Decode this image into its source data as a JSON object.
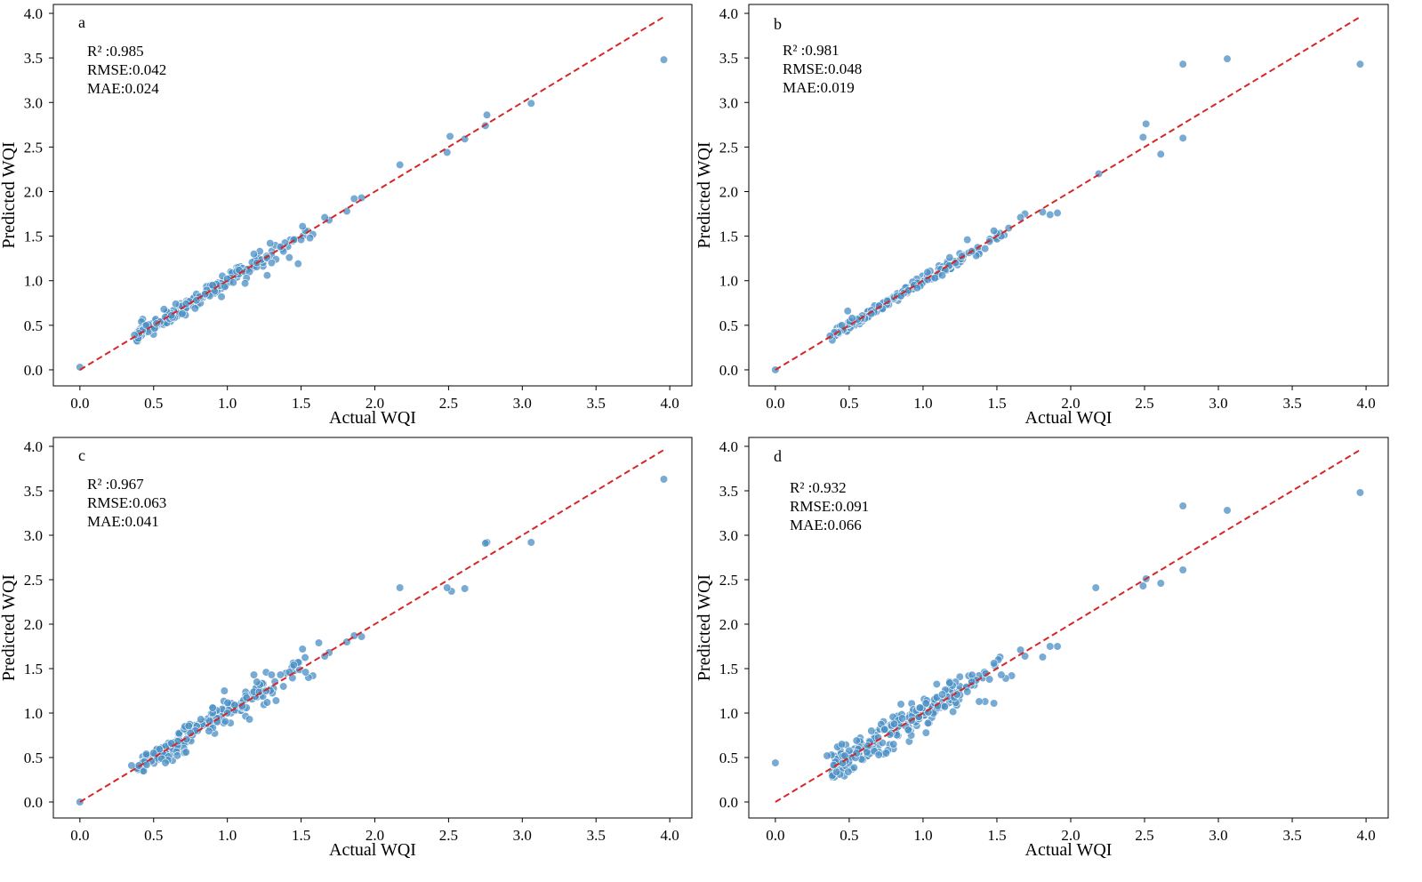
{
  "figure": {
    "background": "#ffffff"
  },
  "style": {
    "point_color": "#4a8fc4",
    "point_edge": "#ffffff",
    "line_color": "#d62728"
  },
  "chart_data": [
    {
      "type": "scatter",
      "panel_label": "a",
      "xlabel": "Actual WQI",
      "ylabel": "Predicted WQI",
      "xlim": [
        -0.18,
        4.15
      ],
      "ylim": [
        -0.18,
        4.1
      ],
      "xticks": [
        "0.0",
        "0.5",
        "1.0",
        "1.5",
        "2.0",
        "2.5",
        "3.0",
        "3.5",
        "4.0"
      ],
      "yticks": [
        "0.0",
        "0.5",
        "1.0",
        "1.5",
        "2.0",
        "2.5",
        "3.0",
        "3.5",
        "4.0"
      ],
      "metrics": [
        "R² :0.985",
        "RMSE:0.042",
        "MAE:0.024"
      ],
      "reference_line": {
        "x": [
          0,
          3.96
        ],
        "y": [
          0,
          3.96
        ]
      },
      "noise": 0.04,
      "seed": 11,
      "points": [
        [
          0.0,
          0.03
        ],
        [
          3.96,
          3.48
        ],
        [
          3.06,
          2.99
        ],
        [
          2.76,
          2.86
        ],
        [
          2.75,
          2.74
        ],
        [
          2.61,
          2.59
        ],
        [
          2.51,
          2.62
        ],
        [
          2.49,
          2.44
        ],
        [
          2.17,
          2.3
        ],
        [
          1.91,
          1.93
        ],
        [
          1.86,
          1.92
        ],
        [
          1.81,
          1.78
        ],
        [
          1.69,
          1.68
        ],
        [
          1.66,
          1.71
        ],
        [
          1.58,
          1.52
        ],
        [
          1.56,
          1.48
        ],
        [
          1.53,
          1.56
        ],
        [
          1.51,
          1.61
        ],
        [
          1.5,
          1.46
        ],
        [
          1.48,
          1.19
        ],
        [
          1.45,
          1.46
        ],
        [
          1.42,
          1.26
        ],
        [
          1.38,
          1.33
        ],
        [
          1.36,
          1.38
        ],
        [
          1.33,
          1.24
        ],
        [
          1.3,
          1.2
        ],
        [
          1.29,
          1.42
        ],
        [
          1.27,
          1.06
        ],
        [
          1.22,
          1.33
        ],
        [
          1.2,
          1.2
        ],
        [
          1.18,
          1.3
        ],
        [
          1.15,
          1.1
        ],
        [
          1.13,
          1.03
        ],
        [
          1.12,
          0.97
        ],
        [
          1.08,
          1.12
        ],
        [
          0.96,
          0.82
        ],
        [
          0.9,
          0.95
        ],
        [
          0.85,
          0.85
        ],
        [
          0.65,
          0.74
        ],
        [
          0.57,
          0.68
        ],
        [
          0.52,
          0.52
        ],
        [
          0.45,
          0.5
        ],
        [
          0.4,
          0.41
        ],
        [
          0.37,
          0.39
        ],
        [
          0.62,
          0.61
        ],
        [
          0.72,
          0.74
        ],
        [
          0.79,
          0.78
        ],
        [
          1.0,
          1.02
        ],
        [
          1.04,
          0.98
        ]
      ],
      "clusters": [
        {
          "from": 0.38,
          "to": 1.25,
          "count": 170
        },
        {
          "from": 1.25,
          "to": 1.55,
          "count": 15
        }
      ]
    },
    {
      "type": "scatter",
      "panel_label": "b",
      "xlabel": "Actual WQI",
      "ylabel": "Predicted WQI",
      "xlim": [
        -0.18,
        4.15
      ],
      "ylim": [
        -0.18,
        4.1
      ],
      "xticks": [
        "0.0",
        "0.5",
        "1.0",
        "1.5",
        "2.0",
        "2.5",
        "3.0",
        "3.5",
        "4.0"
      ],
      "yticks": [
        "0.0",
        "0.5",
        "1.0",
        "1.5",
        "2.0",
        "2.5",
        "3.0",
        "3.5",
        "4.0"
      ],
      "metrics": [
        "R² :0.981",
        "RMSE:0.048",
        "MAE:0.019"
      ],
      "reference_line": {
        "x": [
          0,
          3.96
        ],
        "y": [
          0,
          3.96
        ]
      },
      "noise": 0.025,
      "seed": 23,
      "points": [
        [
          0.0,
          0.0
        ],
        [
          3.96,
          3.43
        ],
        [
          3.06,
          3.49
        ],
        [
          2.76,
          3.43
        ],
        [
          2.76,
          2.6
        ],
        [
          2.61,
          2.42
        ],
        [
          2.51,
          2.76
        ],
        [
          2.49,
          2.61
        ],
        [
          2.19,
          2.2
        ],
        [
          1.91,
          1.76
        ],
        [
          1.86,
          1.74
        ],
        [
          1.81,
          1.77
        ],
        [
          1.69,
          1.75
        ],
        [
          1.66,
          1.71
        ],
        [
          1.58,
          1.59
        ],
        [
          1.53,
          1.5
        ],
        [
          1.5,
          1.53
        ],
        [
          1.48,
          1.56
        ],
        [
          1.45,
          1.44
        ],
        [
          1.42,
          1.36
        ],
        [
          1.38,
          1.3
        ],
        [
          1.36,
          1.28
        ],
        [
          1.33,
          1.33
        ],
        [
          1.3,
          1.46
        ],
        [
          1.22,
          1.2
        ],
        [
          1.18,
          1.26
        ],
        [
          1.15,
          1.12
        ],
        [
          1.13,
          1.06
        ],
        [
          1.08,
          1.03
        ],
        [
          0.96,
          0.92
        ],
        [
          0.9,
          0.89
        ],
        [
          0.85,
          0.83
        ],
        [
          0.65,
          0.63
        ],
        [
          0.52,
          0.58
        ],
        [
          0.49,
          0.66
        ],
        [
          0.45,
          0.5
        ],
        [
          0.4,
          0.42
        ],
        [
          0.37,
          0.38
        ]
      ],
      "clusters": [
        {
          "from": 0.38,
          "to": 1.25,
          "count": 170
        },
        {
          "from": 1.25,
          "to": 1.55,
          "count": 15
        }
      ]
    },
    {
      "type": "scatter",
      "panel_label": "c",
      "xlabel": "Actual WQI",
      "ylabel": "Predicted WQI",
      "xlim": [
        -0.18,
        4.15
      ],
      "ylim": [
        -0.18,
        4.1
      ],
      "xticks": [
        "0.0",
        "0.5",
        "1.0",
        "1.5",
        "2.0",
        "2.5",
        "3.0",
        "3.5",
        "4.0"
      ],
      "yticks": [
        "0.0",
        "0.5",
        "1.0",
        "1.5",
        "2.0",
        "2.5",
        "3.0",
        "3.5",
        "4.0"
      ],
      "metrics": [
        "R² :0.967",
        "RMSE:0.063",
        "MAE:0.041"
      ],
      "reference_line": {
        "x": [
          0,
          3.96
        ],
        "y": [
          0,
          3.96
        ]
      },
      "noise": 0.065,
      "seed": 37,
      "points": [
        [
          0.0,
          0.0
        ],
        [
          3.96,
          3.63
        ],
        [
          3.06,
          2.92
        ],
        [
          2.76,
          2.92
        ],
        [
          2.75,
          2.91
        ],
        [
          2.61,
          2.4
        ],
        [
          2.52,
          2.37
        ],
        [
          2.49,
          2.41
        ],
        [
          2.17,
          2.41
        ],
        [
          1.91,
          1.86
        ],
        [
          1.86,
          1.87
        ],
        [
          1.81,
          1.8
        ],
        [
          1.69,
          1.68
        ],
        [
          1.66,
          1.64
        ],
        [
          1.62,
          1.79
        ],
        [
          1.58,
          1.42
        ],
        [
          1.55,
          1.4
        ],
        [
          1.53,
          1.46
        ],
        [
          1.51,
          1.72
        ],
        [
          1.48,
          1.57
        ],
        [
          1.45,
          1.54
        ],
        [
          1.42,
          1.46
        ],
        [
          1.38,
          1.3
        ],
        [
          1.36,
          1.43
        ],
        [
          1.33,
          1.14
        ],
        [
          1.3,
          1.43
        ],
        [
          1.27,
          1.12
        ],
        [
          1.22,
          1.32
        ],
        [
          1.2,
          1.35
        ],
        [
          1.18,
          1.43
        ],
        [
          1.15,
          0.93
        ],
        [
          1.13,
          1.06
        ],
        [
          1.05,
          1.09
        ],
        [
          0.98,
          1.25
        ],
        [
          0.9,
          1.06
        ],
        [
          0.82,
          0.93
        ],
        [
          0.72,
          0.56
        ],
        [
          0.58,
          0.44
        ],
        [
          0.45,
          0.54
        ],
        [
          0.4,
          0.41
        ],
        [
          0.35,
          0.41
        ],
        [
          0.5,
          0.55
        ],
        [
          0.62,
          0.66
        ],
        [
          0.88,
          0.91
        ],
        [
          1.0,
          1.0
        ],
        [
          1.1,
          1.08
        ]
      ],
      "clusters": [
        {
          "from": 0.38,
          "to": 1.25,
          "count": 180
        },
        {
          "from": 1.25,
          "to": 1.55,
          "count": 15
        }
      ]
    },
    {
      "type": "scatter",
      "panel_label": "d",
      "xlabel": "Actual WQI",
      "ylabel": "Predicted WQI",
      "xlim": [
        -0.18,
        4.15
      ],
      "ylim": [
        -0.18,
        4.1
      ],
      "xticks": [
        "0.0",
        "0.5",
        "1.0",
        "1.5",
        "2.0",
        "2.5",
        "3.0",
        "3.5",
        "4.0"
      ],
      "yticks": [
        "0.0",
        "0.5",
        "1.0",
        "1.5",
        "2.0",
        "2.5",
        "3.0",
        "3.5",
        "4.0"
      ],
      "metrics": [
        "R² :0.932",
        "RMSE:0.091",
        "MAE:0.066"
      ],
      "reference_line": {
        "x": [
          0,
          3.96
        ],
        "y": [
          0,
          3.96
        ]
      },
      "noise": 0.085,
      "seed": 53,
      "points": [
        [
          0.0,
          0.44
        ],
        [
          3.96,
          3.48
        ],
        [
          3.06,
          3.28
        ],
        [
          2.76,
          3.33
        ],
        [
          2.76,
          2.61
        ],
        [
          2.61,
          2.46
        ],
        [
          2.51,
          2.51
        ],
        [
          2.49,
          2.43
        ],
        [
          2.17,
          2.41
        ],
        [
          1.91,
          1.75
        ],
        [
          1.86,
          1.75
        ],
        [
          1.81,
          1.63
        ],
        [
          1.69,
          1.64
        ],
        [
          1.66,
          1.71
        ],
        [
          1.6,
          1.42
        ],
        [
          1.56,
          1.39
        ],
        [
          1.53,
          1.43
        ],
        [
          1.51,
          1.6
        ],
        [
          1.48,
          1.56
        ],
        [
          1.48,
          1.11
        ],
        [
          1.45,
          1.38
        ],
        [
          1.42,
          1.13
        ],
        [
          1.38,
          1.13
        ],
        [
          1.36,
          1.37
        ],
        [
          1.33,
          1.35
        ],
        [
          1.3,
          1.24
        ],
        [
          1.22,
          1.35
        ],
        [
          1.2,
          1.31
        ],
        [
          1.18,
          1.34
        ],
        [
          1.15,
          1.26
        ],
        [
          1.13,
          1.21
        ],
        [
          1.1,
          1.08
        ],
        [
          1.02,
          1.11
        ],
        [
          0.98,
          1.06
        ],
        [
          0.92,
          0.75
        ],
        [
          0.9,
          0.81
        ],
        [
          0.86,
          0.94
        ],
        [
          0.8,
          0.65
        ],
        [
          0.75,
          0.55
        ],
        [
          0.7,
          0.53
        ],
        [
          0.62,
          0.56
        ],
        [
          0.55,
          0.55
        ],
        [
          0.47,
          0.52
        ],
        [
          0.42,
          0.62
        ],
        [
          0.38,
          0.53
        ],
        [
          0.35,
          0.52
        ],
        [
          0.45,
          0.65
        ],
        [
          0.55,
          0.69
        ],
        [
          0.65,
          0.8
        ],
        [
          0.85,
          1.1
        ]
      ],
      "clusters": [
        {
          "from": 0.38,
          "to": 1.25,
          "count": 200
        },
        {
          "from": 1.25,
          "to": 1.55,
          "count": 15
        }
      ]
    }
  ]
}
